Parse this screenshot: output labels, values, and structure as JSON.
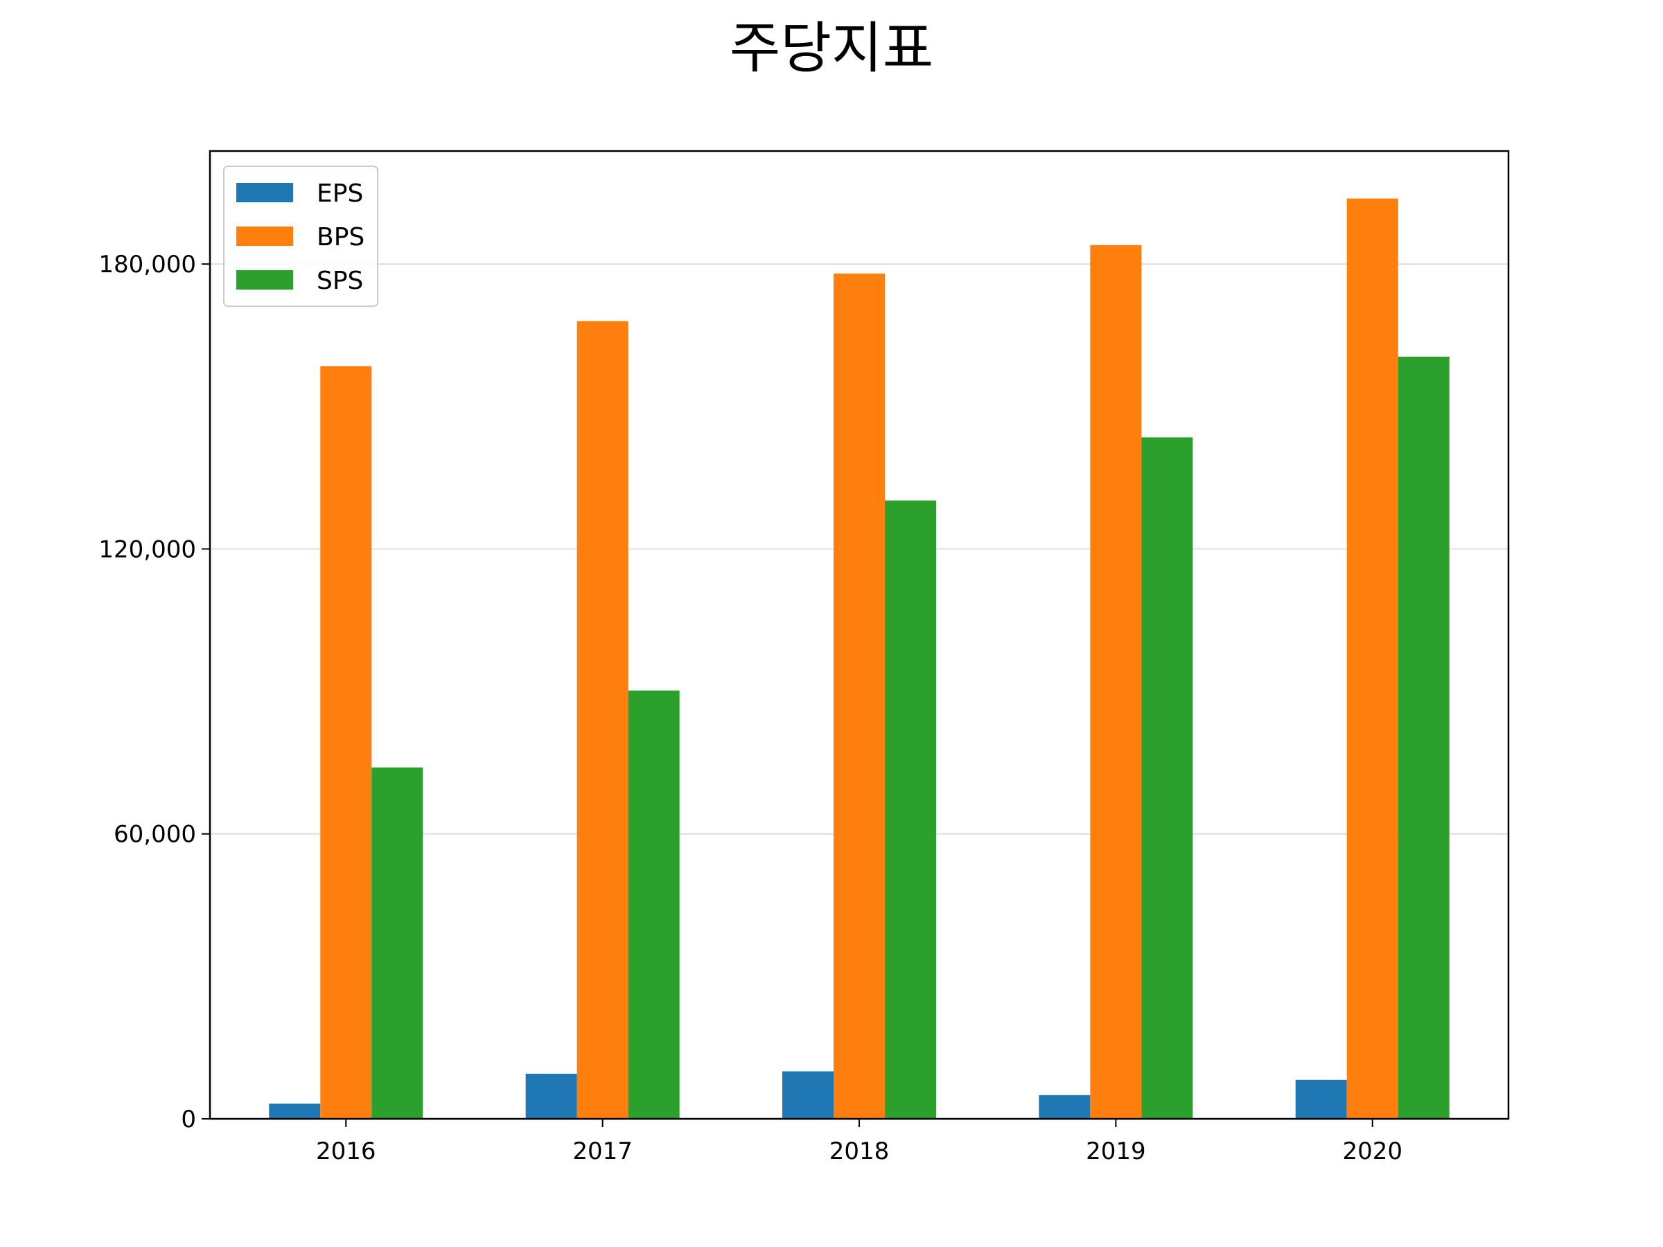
{
  "chart_data": {
    "type": "bar",
    "title": "주당지표",
    "xlabel": "",
    "ylabel": "",
    "categories": [
      "2016",
      "2017",
      "2018",
      "2019",
      "2020"
    ],
    "series": [
      {
        "name": "EPS",
        "color": "#1f77b4",
        "values": [
          3200,
          9500,
          10000,
          5000,
          8200
        ]
      },
      {
        "name": "BPS",
        "color": "#ff7f0e",
        "values": [
          158500,
          168000,
          178000,
          184000,
          193800
        ]
      },
      {
        "name": "SPS",
        "color": "#2ca02c",
        "values": [
          74000,
          90200,
          130200,
          143500,
          160500
        ]
      }
    ],
    "ylim": [
      0,
      203800
    ],
    "yticks": [
      0,
      60000,
      120000,
      180000
    ],
    "ytick_labels": [
      "0",
      "60,000",
      "120,000",
      "180,000"
    ],
    "grid": "y-axis",
    "legend_position": "upper-left"
  }
}
